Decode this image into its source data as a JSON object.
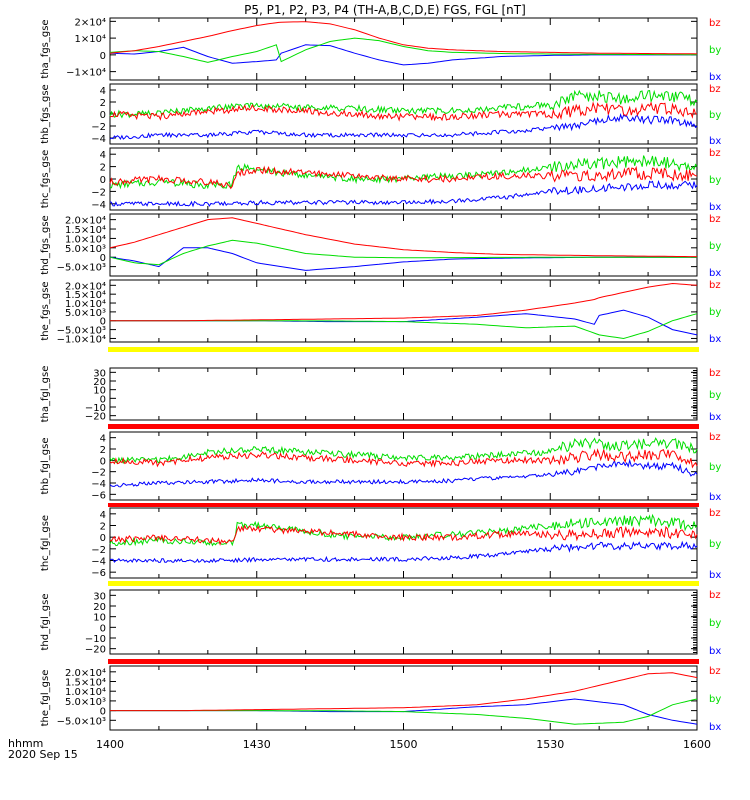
{
  "title": "P5, P1, P2, P3, P4 (TH-A,B,C,D,E) FGS, FGL [nT]",
  "time_axis": {
    "label": "hhmm",
    "date": "2020 Sep 15",
    "ticks": [
      "1400",
      "1430",
      "1500",
      "1530",
      "1600"
    ],
    "range": [
      "14:00",
      "16:00"
    ]
  },
  "colors": {
    "bx": "#0000ff",
    "by": "#00dd00",
    "bz": "#ff0000",
    "yellow_bar": "#ffff00",
    "red_bar": "#ff0000",
    "frame": "#000000"
  },
  "chart_data": [
    {
      "type": "line",
      "ylabel": "tha_fgs_gse",
      "ylim": [
        -15000,
        22000
      ],
      "y_ticks": [
        -10000,
        0,
        10000,
        20000
      ],
      "y_tick_labels": [
        "−1×10⁴",
        "0",
        "1×10⁴",
        "2×10⁴"
      ],
      "legend": [
        "bz",
        "by",
        "bx"
      ],
      "x": [
        "14:00",
        "14:05",
        "14:10",
        "14:15",
        "14:20",
        "14:25",
        "14:30",
        "14:34",
        "14:35",
        "14:40",
        "14:45",
        "14:50",
        "14:55",
        "15:00",
        "15:05",
        "15:10",
        "15:20",
        "15:30",
        "15:40",
        "15:50",
        "16:00"
      ],
      "series": [
        {
          "name": "bz",
          "values": [
            1000,
            2500,
            5000,
            8000,
            11000,
            14500,
            17500,
            19200,
            19500,
            19800,
            18500,
            15000,
            10000,
            6000,
            4000,
            3000,
            2000,
            1500,
            1000,
            800,
            600
          ]
        },
        {
          "name": "by",
          "values": [
            1500,
            2500,
            2000,
            -1000,
            -4500,
            -1000,
            2000,
            6000,
            -4000,
            3000,
            8000,
            10000,
            8500,
            5000,
            2500,
            1500,
            800,
            500,
            300,
            200,
            100
          ]
        },
        {
          "name": "bx",
          "values": [
            1000,
            500,
            2000,
            4500,
            -1000,
            -5000,
            -4000,
            -3000,
            1000,
            6000,
            5500,
            1000,
            -3000,
            -6000,
            -5000,
            -3000,
            -1000,
            -300,
            0,
            0,
            0
          ]
        }
      ]
    },
    {
      "type": "line",
      "ylabel": "thb_fgs_gse",
      "ylim": [
        -5,
        5
      ],
      "y_ticks": [
        -4,
        -2,
        0,
        2,
        4
      ],
      "y_tick_labels": [
        "−4",
        "−2",
        "0",
        "2",
        "4"
      ],
      "legend": [
        "bz",
        "by",
        "bx"
      ],
      "x": [
        "14:00",
        "14:10",
        "14:20",
        "14:30",
        "14:40",
        "14:50",
        "15:00",
        "15:10",
        "15:20",
        "15:30",
        "15:35",
        "15:40",
        "15:45",
        "15:50",
        "15:55",
        "16:00"
      ],
      "series": [
        {
          "name": "bz",
          "values": [
            0,
            -0.5,
            0.5,
            1,
            0.5,
            0,
            -0.5,
            -0.5,
            0,
            0,
            0.5,
            1,
            0.5,
            1,
            1,
            0
          ]
        },
        {
          "name": "by",
          "values": [
            0,
            0,
            1,
            1.5,
            1,
            1,
            0.5,
            0.5,
            1,
            1.5,
            3,
            3,
            2.5,
            3,
            3,
            2
          ]
        },
        {
          "name": "bx",
          "values": [
            -4,
            -3.5,
            -3.5,
            -3,
            -3.5,
            -3.5,
            -3.5,
            -3.5,
            -3,
            -2.5,
            -2,
            -1,
            -0.5,
            -1,
            -1,
            -2
          ]
        }
      ]
    },
    {
      "type": "line",
      "ylabel": "thc_fgs_gse",
      "ylim": [
        -5,
        5
      ],
      "y_ticks": [
        -4,
        -2,
        0,
        2,
        4
      ],
      "y_tick_labels": [
        "−4",
        "−2",
        "0",
        "2",
        "4"
      ],
      "legend": [
        "bz",
        "by",
        "bx"
      ],
      "x": [
        "14:00",
        "14:10",
        "14:20",
        "14:25",
        "14:26",
        "14:30",
        "14:40",
        "14:50",
        "15:00",
        "15:10",
        "15:20",
        "15:30",
        "15:40",
        "15:50",
        "16:00"
      ],
      "series": [
        {
          "name": "bz",
          "values": [
            -0.5,
            0,
            -0.5,
            -1,
            1,
            1.5,
            1,
            0.5,
            0,
            0,
            0.5,
            0.5,
            0.5,
            1,
            0.5
          ]
        },
        {
          "name": "by",
          "values": [
            -1,
            -0.5,
            -1,
            -1,
            2,
            1.5,
            0.5,
            0,
            0,
            0.5,
            1,
            2,
            2.5,
            3,
            2
          ]
        },
        {
          "name": "bx",
          "values": [
            -4,
            -4,
            -4,
            -4,
            -4,
            -3.8,
            -3.8,
            -3.8,
            -3.8,
            -3.5,
            -3,
            -2,
            -1.5,
            -1,
            -1
          ]
        }
      ]
    },
    {
      "type": "line",
      "ylabel": "thd_fgs_gse",
      "ylim": [
        -10000,
        23000
      ],
      "y_ticks": [
        -5000,
        0,
        5000,
        10000,
        15000,
        20000
      ],
      "y_tick_labels": [
        "−5.0×10³",
        "0",
        "5.0×10³",
        "1.0×10⁴",
        "1.5×10⁴",
        "2.0×10⁴"
      ],
      "legend": [
        "bz",
        "by",
        "bx"
      ],
      "x": [
        "14:00",
        "14:05",
        "14:10",
        "14:15",
        "14:20",
        "14:25",
        "14:30",
        "14:40",
        "14:50",
        "15:00",
        "15:10",
        "15:20",
        "15:40",
        "16:00"
      ],
      "series": [
        {
          "name": "bz",
          "values": [
            5000,
            8000,
            12000,
            16000,
            20000,
            21000,
            18000,
            12000,
            7000,
            4000,
            2500,
            1500,
            800,
            300
          ]
        },
        {
          "name": "by",
          "values": [
            0,
            -3000,
            -4000,
            2000,
            6000,
            9000,
            7500,
            2000,
            0,
            -300,
            -200,
            -100,
            0,
            0
          ]
        },
        {
          "name": "bx",
          "values": [
            0,
            -2000,
            -5000,
            5000,
            5000,
            2000,
            -3000,
            -7000,
            -5000,
            -2500,
            -1000,
            -500,
            0,
            0
          ]
        }
      ]
    },
    {
      "type": "line",
      "ylabel": "the_fgs_gse",
      "ylim": [
        -12000,
        23000
      ],
      "y_ticks": [
        -10000,
        -5000,
        0,
        5000,
        10000,
        15000,
        20000
      ],
      "y_tick_labels": [
        "−1.0×10⁴",
        "−5.0×10³",
        "0",
        "5.0×10³",
        "1.0×10⁴",
        "1.5×10⁴",
        "2.0×10⁴"
      ],
      "legend": [
        "bz",
        "by",
        "bx"
      ],
      "x": [
        "14:00",
        "14:15",
        "14:30",
        "14:45",
        "15:00",
        "15:15",
        "15:25",
        "15:35",
        "15:39",
        "15:40",
        "15:45",
        "15:50",
        "15:55",
        "16:00"
      ],
      "series": [
        {
          "name": "bz",
          "values": [
            0,
            0,
            500,
            1000,
            1500,
            3000,
            6000,
            10000,
            12000,
            13000,
            16000,
            19000,
            21000,
            20000
          ]
        },
        {
          "name": "by",
          "values": [
            0,
            0,
            0,
            -100,
            -500,
            -2000,
            -4000,
            -3000,
            -7000,
            -8000,
            -10000,
            -6000,
            0,
            4000
          ]
        },
        {
          "name": "bx",
          "values": [
            0,
            0,
            0,
            -500,
            -500,
            2000,
            4000,
            1000,
            -2000,
            3000,
            6000,
            2000,
            -5000,
            -8000
          ]
        }
      ]
    },
    {
      "type": "line",
      "ylabel": "tha_fgl_gse",
      "ylim": [
        -25,
        35
      ],
      "y_ticks": [
        -20,
        -10,
        0,
        10,
        20,
        30
      ],
      "y_tick_labels": [
        "−20",
        "−10",
        "0",
        "10",
        "20",
        "30"
      ],
      "legend": [
        "bz",
        "by",
        "bx"
      ],
      "series": [
        {
          "name": "bz",
          "values": []
        },
        {
          "name": "by",
          "values": []
        },
        {
          "name": "bx",
          "values": []
        }
      ]
    },
    {
      "type": "line",
      "ylabel": "thb_fgl_gse",
      "ylim": [
        -7,
        5
      ],
      "y_ticks": [
        -6,
        -4,
        -2,
        0,
        2,
        4
      ],
      "y_tick_labels": [
        "−6",
        "−4",
        "−2",
        "0",
        "2",
        "4"
      ],
      "legend": [
        "bz",
        "by",
        "bx"
      ],
      "x": [
        "14:00",
        "14:10",
        "14:20",
        "14:30",
        "14:40",
        "14:50",
        "15:00",
        "15:10",
        "15:20",
        "15:30",
        "15:35",
        "15:40",
        "15:45",
        "15:50",
        "15:55",
        "16:00"
      ],
      "series": [
        {
          "name": "bz",
          "values": [
            0,
            -0.5,
            0.5,
            1,
            0.5,
            0,
            -0.5,
            -0.5,
            0,
            0,
            0.5,
            1,
            0.5,
            1,
            1,
            -1
          ]
        },
        {
          "name": "by",
          "values": [
            0,
            0,
            1.5,
            2,
            1.5,
            1,
            0.5,
            0.5,
            1,
            1.5,
            3,
            3,
            2.5,
            3,
            3,
            2
          ]
        },
        {
          "name": "bx",
          "values": [
            -4.5,
            -4,
            -3.8,
            -3.5,
            -3.8,
            -3.8,
            -3.8,
            -3.6,
            -3,
            -2.5,
            -2,
            -1,
            -0.5,
            -1,
            -1,
            -2.5
          ]
        }
      ]
    },
    {
      "type": "line",
      "ylabel": "thc_fgl_gse",
      "ylim": [
        -7,
        5
      ],
      "y_ticks": [
        -6,
        -4,
        -2,
        0,
        2,
        4
      ],
      "y_tick_labels": [
        "−6",
        "−4",
        "−2",
        "0",
        "2",
        "4"
      ],
      "legend": [
        "bz",
        "by",
        "bx"
      ],
      "x": [
        "14:00",
        "14:10",
        "14:20",
        "14:25",
        "14:26",
        "14:30",
        "14:40",
        "14:50",
        "15:00",
        "15:10",
        "15:20",
        "15:30",
        "15:40",
        "15:50",
        "16:00"
      ],
      "series": [
        {
          "name": "bz",
          "values": [
            -0.5,
            0,
            -0.5,
            -1,
            1.5,
            1.5,
            1,
            0.5,
            0,
            0,
            0.5,
            0.5,
            0.5,
            1,
            0.5
          ]
        },
        {
          "name": "by",
          "values": [
            -1,
            -0.5,
            -1,
            -1,
            2,
            2,
            1,
            0,
            0,
            0.5,
            1,
            2,
            2.5,
            3,
            2
          ]
        },
        {
          "name": "bx",
          "values": [
            -4,
            -4,
            -4,
            -4,
            -4,
            -3.8,
            -3.8,
            -3.8,
            -3.8,
            -3.5,
            -3,
            -2,
            -1.5,
            -1.5,
            -1.5
          ]
        }
      ]
    },
    {
      "type": "line",
      "ylabel": "thd_fgl_gse",
      "ylim": [
        -25,
        35
      ],
      "y_ticks": [
        -20,
        -10,
        0,
        10,
        20,
        30
      ],
      "y_tick_labels": [
        "−20",
        "−10",
        "0",
        "10",
        "20",
        "30"
      ],
      "legend": [
        "bz",
        "by",
        "bx"
      ],
      "series": [
        {
          "name": "bz",
          "values": []
        },
        {
          "name": "by",
          "values": []
        },
        {
          "name": "bx",
          "values": []
        }
      ]
    },
    {
      "type": "line",
      "ylabel": "the_fgl_gse",
      "ylim": [
        -10000,
        23000
      ],
      "y_ticks": [
        -5000,
        0,
        5000,
        10000,
        15000,
        20000
      ],
      "y_tick_labels": [
        "−5.0×10³",
        "0",
        "5.0×10³",
        "1.0×10⁴",
        "1.5×10⁴",
        "2.0×10⁴"
      ],
      "legend": [
        "bz",
        "by",
        "bx"
      ],
      "x": [
        "14:00",
        "14:15",
        "14:30",
        "14:45",
        "15:00",
        "15:15",
        "15:25",
        "15:35",
        "15:45",
        "15:50",
        "15:55",
        "16:00"
      ],
      "series": [
        {
          "name": "bz",
          "values": [
            0,
            0,
            500,
            1000,
            1500,
            3000,
            6000,
            10000,
            16000,
            19000,
            19500,
            17000
          ]
        },
        {
          "name": "by",
          "values": [
            0,
            0,
            0,
            -100,
            -500,
            -2000,
            -4000,
            -7000,
            -6000,
            -3000,
            3000,
            6000
          ]
        },
        {
          "name": "bx",
          "values": [
            0,
            0,
            0,
            -500,
            -500,
            2000,
            3000,
            6000,
            3000,
            -2000,
            -5000,
            -7000
          ]
        }
      ]
    }
  ]
}
